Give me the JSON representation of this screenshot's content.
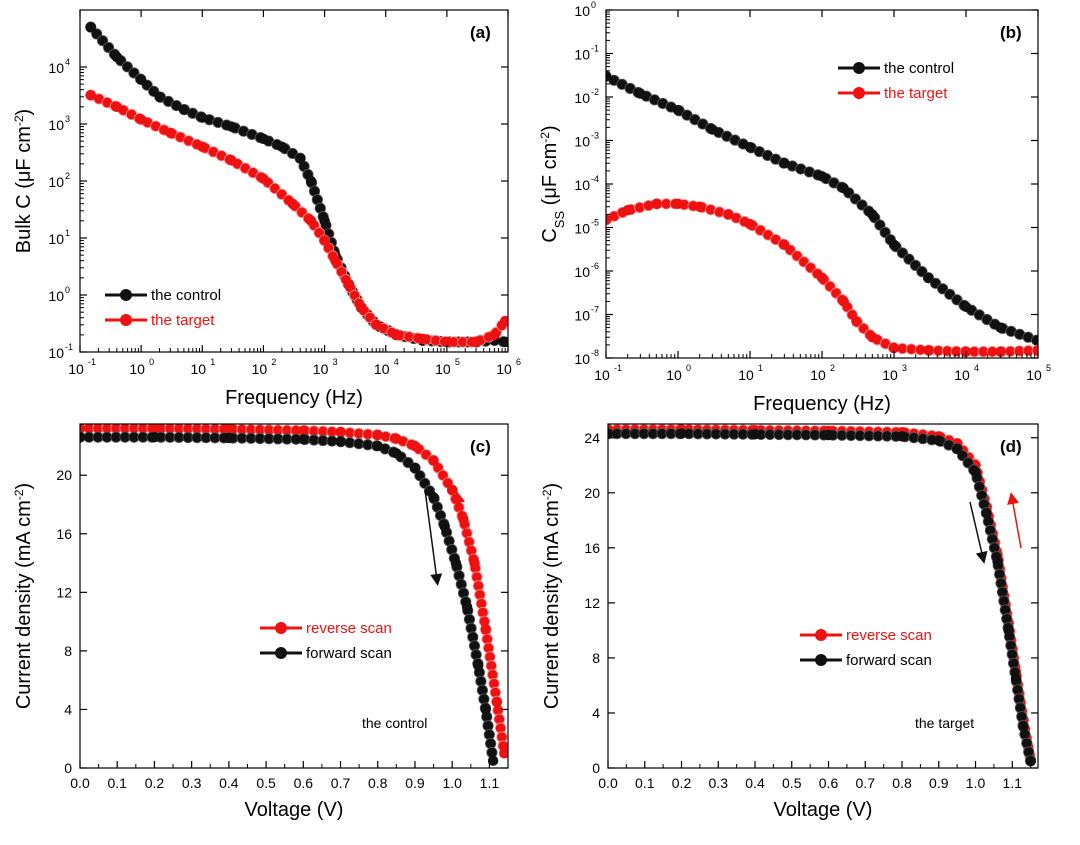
{
  "colors": {
    "control": "#111111",
    "target": "#ee1111",
    "axis": "#000000"
  },
  "chart_data": [
    {
      "id": "a",
      "type": "scatter",
      "panel_label": "(a)",
      "xscale": "log",
      "yscale": "log",
      "xlim": [
        0.1,
        1000000
      ],
      "ylim": [
        0.1,
        100000
      ],
      "x_tick_exponents": [
        "-1",
        "0",
        "1",
        "2",
        "3",
        "4",
        "5",
        "6"
      ],
      "y_tick_exponents": [
        "-1",
        "0",
        "1",
        "2",
        "3",
        "4"
      ],
      "tick_base": "10",
      "xlabel": "Frequency (Hz)",
      "ylabel_main": "Bulk C (μF cm",
      "ylabel_sup": "-2",
      "ylabel_end": ")",
      "legend_position": "bottom-left",
      "series": [
        {
          "name": "the control",
          "color": "#111111",
          "x": [
            0.15,
            0.4,
            1,
            2,
            5,
            10,
            30,
            100,
            200,
            400,
            600,
            1000,
            1500,
            2500,
            4000,
            7000,
            15000,
            40000,
            100000,
            300000,
            600000,
            900000
          ],
          "y": [
            50000,
            15000,
            6000,
            3000,
            1800,
            1300,
            900,
            550,
            400,
            250,
            100,
            20,
            5,
            1.5,
            0.6,
            0.3,
            0.2,
            0.16,
            0.15,
            0.15,
            0.16,
            0.15
          ]
        },
        {
          "name": "the target",
          "color": "#ee1111",
          "x": [
            0.15,
            0.4,
            1,
            3,
            10,
            30,
            100,
            300,
            600,
            1000,
            1500,
            2500,
            4000,
            7000,
            15000,
            40000,
            100000,
            300000,
            600000,
            900000
          ],
          "y": [
            3200,
            2000,
            1200,
            700,
            400,
            230,
            110,
            40,
            20,
            9,
            4,
            1.5,
            0.6,
            0.3,
            0.2,
            0.17,
            0.15,
            0.15,
            0.2,
            0.35
          ]
        }
      ]
    },
    {
      "id": "b",
      "type": "scatter",
      "panel_label": "(b)",
      "xscale": "log",
      "yscale": "log",
      "xlim": [
        0.1,
        100000
      ],
      "ylim": [
        1e-08,
        1
      ],
      "x_tick_exponents": [
        "-1",
        "0",
        "1",
        "2",
        "3",
        "4",
        "5"
      ],
      "y_tick_exponents": [
        "-8",
        "-7",
        "-6",
        "-5",
        "-4",
        "-3",
        "-2",
        "-1",
        "0"
      ],
      "tick_base": "10",
      "xlabel": "Frequency (Hz)",
      "ylabel_main": "C",
      "ylabel_sub": "SS",
      "ylabel_mid": " (μF cm",
      "ylabel_sup": "-2",
      "ylabel_end": ")",
      "legend_position": "top-right",
      "series": [
        {
          "name": "the control",
          "color": "#111111",
          "x": [
            0.1,
            0.3,
            1,
            3,
            10,
            30,
            100,
            200,
            500,
            1000,
            3000,
            10000,
            30000,
            100000
          ],
          "y": [
            0.03,
            0.012,
            0.005,
            0.0018,
            0.0007,
            0.0003,
            0.00015,
            8e-05,
            2e-05,
            4e-06,
            7e-07,
            1.5e-07,
            5e-08,
            2.5e-08
          ]
        },
        {
          "name": "the target",
          "color": "#ee1111",
          "x": [
            0.1,
            0.2,
            0.5,
            1,
            2,
            5,
            10,
            30,
            100,
            200,
            300,
            500,
            1000,
            3000,
            10000,
            30000,
            100000
          ],
          "y": [
            1.5e-05,
            2.5e-05,
            3.5e-05,
            3.5e-05,
            3e-05,
            2e-05,
            1.2e-05,
            4e-06,
            7e-07,
            2e-07,
            7e-08,
            3e-08,
            1.7e-08,
            1.5e-08,
            1.4e-08,
            1.4e-08,
            1.5e-08
          ]
        }
      ]
    },
    {
      "id": "c",
      "type": "scatter",
      "panel_label": "(c)",
      "xlim": [
        0,
        1.15
      ],
      "ylim": [
        0,
        23.5
      ],
      "x_ticks": [
        "0.0",
        "0.1",
        "0.2",
        "0.3",
        "0.4",
        "0.5",
        "0.6",
        "0.7",
        "0.8",
        "0.9",
        "1.0",
        "1.1"
      ],
      "y_ticks": [
        "0",
        "4",
        "8",
        "12",
        "16",
        "20"
      ],
      "xlabel": "Voltage (V)",
      "ylabel": "Current density (mA cm",
      "ylabel_sup": "-2",
      "ylabel_end": ")",
      "annotation": "the control",
      "legend_position": "center",
      "series": [
        {
          "name": "reverse scan",
          "color": "#ee1111",
          "x": [
            0,
            0.2,
            0.4,
            0.6,
            0.7,
            0.8,
            0.85,
            0.9,
            0.95,
            1.0,
            1.03,
            1.06,
            1.09,
            1.12,
            1.14
          ],
          "y": [
            23.2,
            23.2,
            23.15,
            23.05,
            22.95,
            22.75,
            22.5,
            22.0,
            21.0,
            19.0,
            17.0,
            14.0,
            9.5,
            4.5,
            1.0
          ]
        },
        {
          "name": "forward scan",
          "color": "#111111",
          "x": [
            0,
            0.2,
            0.4,
            0.6,
            0.7,
            0.8,
            0.85,
            0.9,
            0.95,
            0.98,
            1.01,
            1.04,
            1.07,
            1.09,
            1.11
          ],
          "y": [
            22.6,
            22.6,
            22.55,
            22.45,
            22.3,
            22.0,
            21.5,
            20.5,
            18.5,
            16.5,
            14.0,
            11.0,
            7.0,
            4.0,
            0.5
          ]
        }
      ]
    },
    {
      "id": "d",
      "type": "scatter",
      "panel_label": "(d)",
      "xlim": [
        0,
        1.17
      ],
      "ylim": [
        0,
        25
      ],
      "x_ticks": [
        "0.0",
        "0.1",
        "0.2",
        "0.3",
        "0.4",
        "0.5",
        "0.6",
        "0.7",
        "0.8",
        "0.9",
        "1.0",
        "1.1"
      ],
      "y_ticks": [
        "0",
        "4",
        "8",
        "12",
        "16",
        "20",
        "24"
      ],
      "xlabel": "Voltage (V)",
      "ylabel": "Current density (mA cm",
      "ylabel_sup": "-2",
      "ylabel_end": ")",
      "annotation": "the target",
      "legend_position": "center",
      "series": [
        {
          "name": "reverse scan",
          "color": "#ee1111",
          "x": [
            0,
            0.2,
            0.4,
            0.6,
            0.8,
            0.9,
            0.95,
            1.0,
            1.03,
            1.06,
            1.09,
            1.11,
            1.13,
            1.15
          ],
          "y": [
            24.6,
            24.6,
            24.55,
            24.5,
            24.4,
            24.1,
            23.6,
            22.0,
            19.0,
            15.5,
            10.5,
            7.0,
            3.5,
            0.6
          ]
        },
        {
          "name": "forward scan",
          "color": "#111111",
          "x": [
            0,
            0.2,
            0.4,
            0.6,
            0.8,
            0.9,
            0.95,
            1.0,
            1.03,
            1.06,
            1.09,
            1.11,
            1.13,
            1.15
          ],
          "y": [
            24.3,
            24.3,
            24.25,
            24.2,
            24.1,
            23.8,
            23.2,
            21.5,
            18.5,
            15.0,
            10.0,
            6.5,
            3.0,
            0.5
          ]
        }
      ]
    }
  ]
}
